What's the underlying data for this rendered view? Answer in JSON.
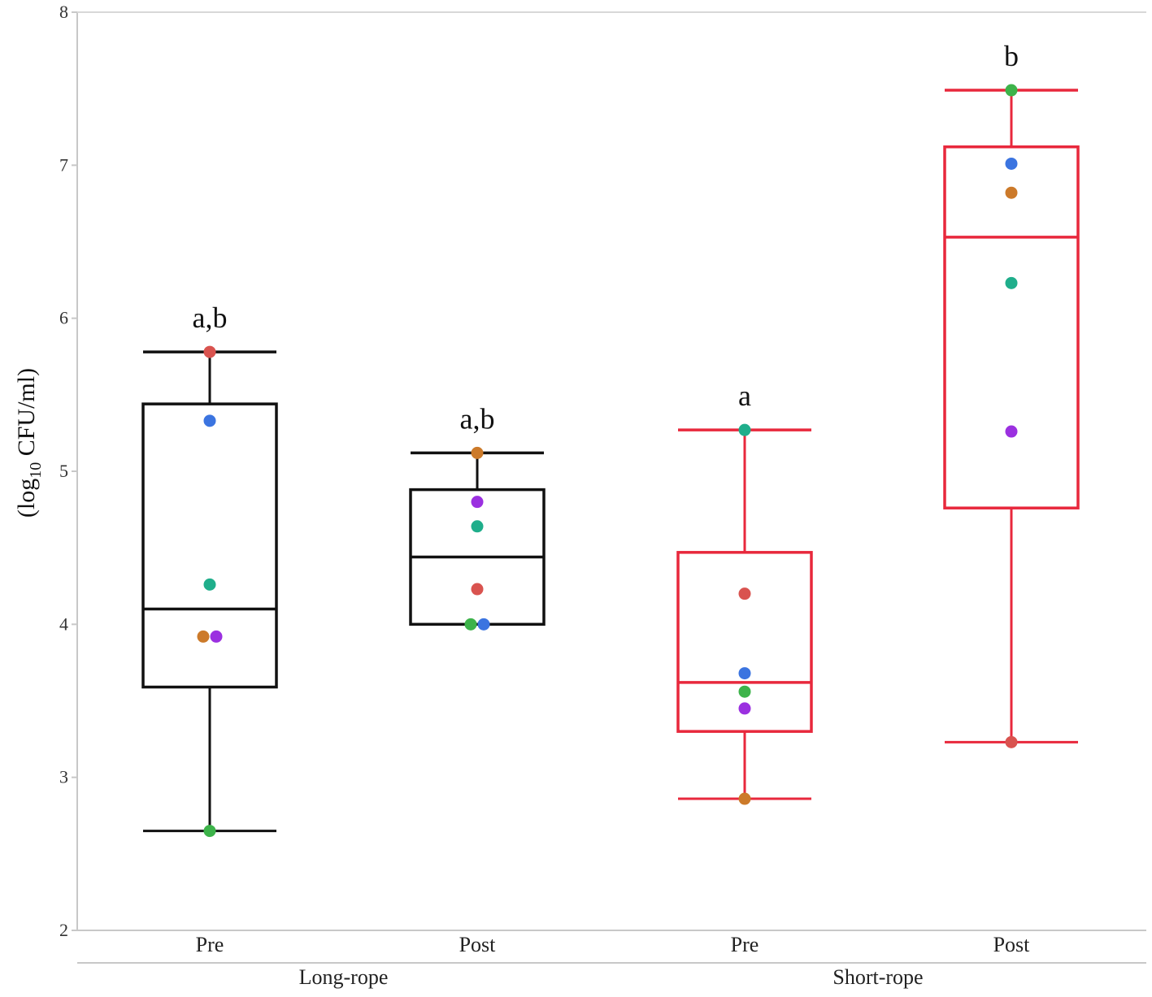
{
  "chart_data": {
    "type": "box",
    "ylabel_prefix": "(log",
    "ylabel_sub": "10",
    "ylabel_suffix": " CFU/ml)",
    "ylim": [
      2,
      8
    ],
    "yticks": [
      "2",
      "3",
      "4",
      "5",
      "6",
      "7",
      "8"
    ],
    "grid": false,
    "groups": [
      {
        "label": "Long-rope",
        "color": "#111111"
      },
      {
        "label": "Short-rope",
        "color": "#e8283c"
      }
    ],
    "series": [
      {
        "category": "Pre",
        "group": 0,
        "significance": "a,b",
        "whisker_low": 2.65,
        "q1": 3.59,
        "median": 4.1,
        "q3": 5.44,
        "whisker_high": 5.78,
        "points": [
          {
            "y": 5.78,
            "color": "#d9534f"
          },
          {
            "y": 5.33,
            "color": "#3b74e0"
          },
          {
            "y": 4.26,
            "color": "#1fae8b"
          },
          {
            "y": 3.92,
            "color": "#cc7a2a"
          },
          {
            "y": 3.92,
            "color": "#9b30e0"
          },
          {
            "y": 2.65,
            "color": "#3db34a"
          }
        ]
      },
      {
        "category": "Post",
        "group": 0,
        "significance": "a,b",
        "whisker_low": 4.0,
        "q1": 4.0,
        "median": 4.44,
        "q3": 4.88,
        "whisker_high": 5.12,
        "points": [
          {
            "y": 5.12,
            "color": "#cc7a2a"
          },
          {
            "y": 4.8,
            "color": "#9b30e0"
          },
          {
            "y": 4.64,
            "color": "#1fae8b"
          },
          {
            "y": 4.23,
            "color": "#d9534f"
          },
          {
            "y": 4.0,
            "color": "#3db34a"
          },
          {
            "y": 4.0,
            "color": "#3b74e0"
          }
        ]
      },
      {
        "category": "Pre",
        "group": 1,
        "significance": "a",
        "whisker_low": 2.86,
        "q1": 3.3,
        "median": 3.62,
        "q3": 4.47,
        "whisker_high": 5.27,
        "points": [
          {
            "y": 5.27,
            "color": "#1fae8b"
          },
          {
            "y": 4.2,
            "color": "#d9534f"
          },
          {
            "y": 3.68,
            "color": "#3b74e0"
          },
          {
            "y": 3.56,
            "color": "#3db34a"
          },
          {
            "y": 3.45,
            "color": "#9b30e0"
          },
          {
            "y": 2.86,
            "color": "#cc7a2a"
          }
        ]
      },
      {
        "category": "Post",
        "group": 1,
        "significance": "b",
        "whisker_low": 3.23,
        "q1": 4.76,
        "median": 6.53,
        "q3": 7.12,
        "whisker_high": 7.49,
        "points": [
          {
            "y": 7.49,
            "color": "#3db34a"
          },
          {
            "y": 7.01,
            "color": "#3b74e0"
          },
          {
            "y": 6.82,
            "color": "#cc7a2a"
          },
          {
            "y": 6.23,
            "color": "#1fae8b"
          },
          {
            "y": 5.26,
            "color": "#9b30e0"
          },
          {
            "y": 3.23,
            "color": "#d9534f"
          }
        ]
      }
    ]
  }
}
